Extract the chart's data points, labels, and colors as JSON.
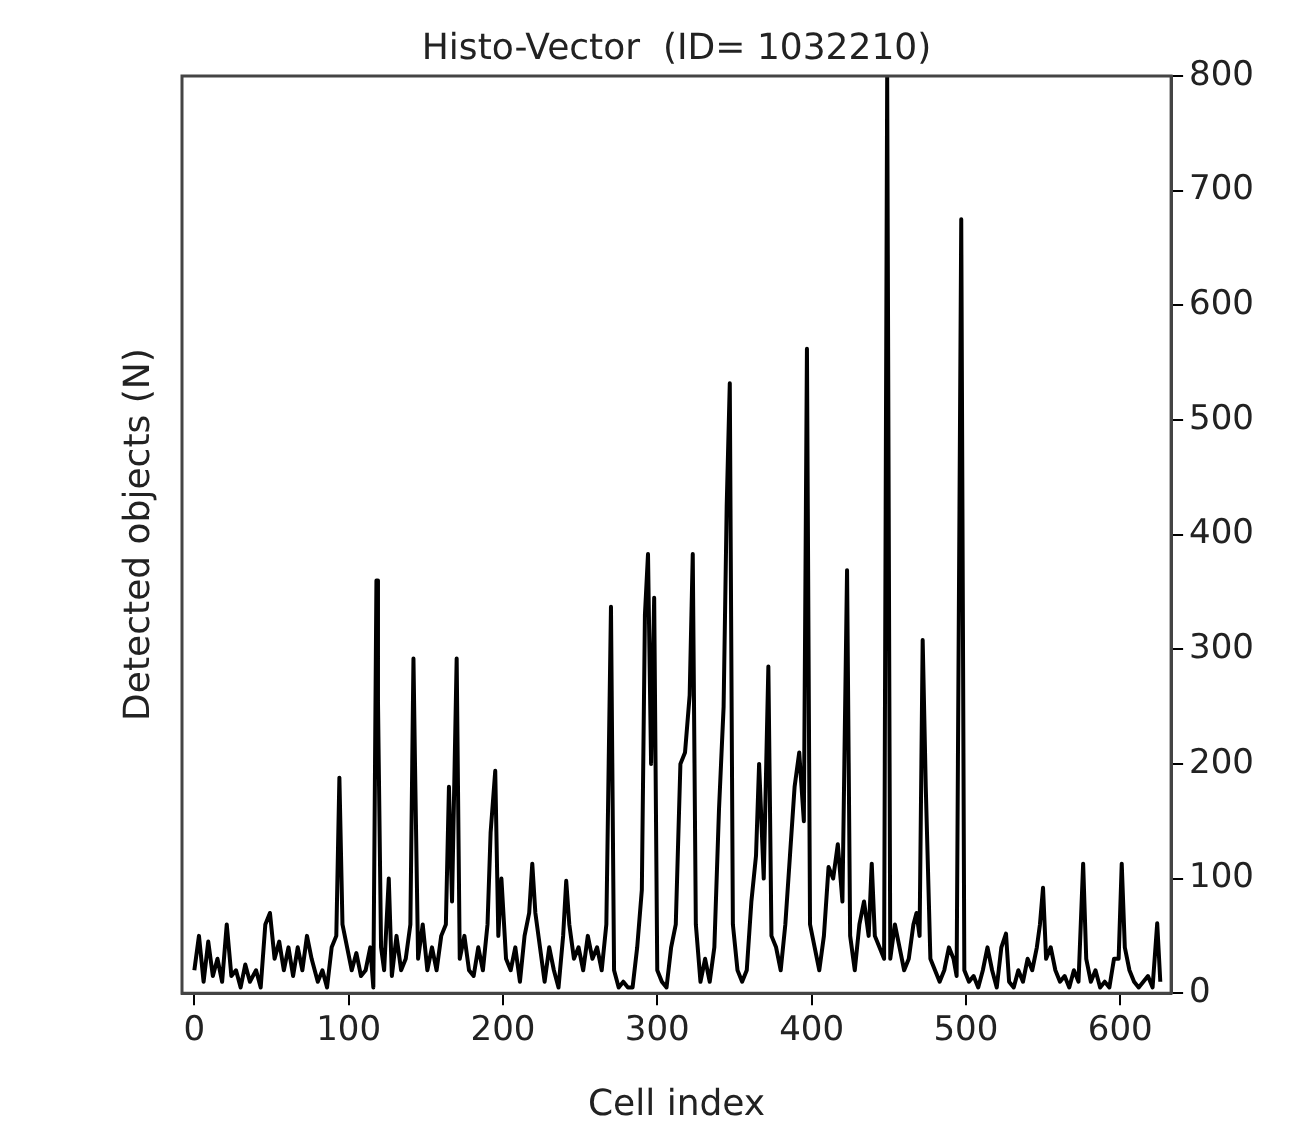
{
  "chart_data": {
    "type": "line",
    "title": "Histo-Vector  (ID= 1032210)",
    "xlabel": "Cell index",
    "ylabel": "Detected objects (N)",
    "xlim": [
      -8,
      633
    ],
    "xticks": [
      0,
      100,
      200,
      300,
      400,
      500,
      600
    ],
    "ylim": [
      0,
      800
    ],
    "yticks": [
      0,
      100,
      200,
      300,
      400,
      500,
      600,
      700,
      800
    ],
    "grid": false,
    "marker": "none",
    "x": [
      0,
      3,
      6,
      9,
      12,
      15,
      18,
      21,
      24,
      27,
      30,
      33,
      36,
      40,
      43,
      46,
      49,
      52,
      55,
      58,
      61,
      64,
      67,
      70,
      73,
      76,
      80,
      83,
      86,
      89,
      92,
      94,
      96,
      99,
      102,
      105,
      108,
      111,
      114,
      116,
      118,
      119,
      121,
      123,
      126,
      128,
      131,
      134,
      137,
      140,
      142,
      143,
      145,
      148,
      151,
      154,
      157,
      160,
      163,
      165,
      167,
      170,
      172,
      175,
      178,
      181,
      184,
      187,
      190,
      192,
      195,
      197,
      199,
      202,
      205,
      208,
      211,
      214,
      217,
      219,
      221,
      224,
      227,
      230,
      233,
      236,
      239,
      241,
      243,
      246,
      249,
      252,
      255,
      258,
      261,
      264,
      267,
      270,
      272,
      275,
      278,
      281,
      284,
      287,
      290,
      292,
      294,
      296,
      298,
      300,
      303,
      306,
      309,
      312,
      315,
      318,
      321,
      323,
      325,
      328,
      331,
      334,
      337,
      340,
      343,
      345,
      347,
      349,
      352,
      355,
      358,
      361,
      364,
      366,
      369,
      372,
      374,
      377,
      380,
      383,
      386,
      389,
      392,
      395,
      397,
      399,
      402,
      405,
      408,
      411,
      414,
      417,
      420,
      423,
      425,
      428,
      431,
      434,
      437,
      439,
      441,
      444,
      447,
      449,
      451,
      454,
      457,
      460,
      463,
      466,
      468,
      470,
      472,
      474,
      477,
      480,
      483,
      486,
      489,
      492,
      494,
      497,
      499,
      502,
      505,
      508,
      511,
      514,
      517,
      520,
      523,
      526,
      528,
      531,
      534,
      537,
      540,
      543,
      546,
      548,
      550,
      552,
      555,
      558,
      561,
      564,
      567,
      570,
      573,
      576,
      578,
      581,
      584,
      587,
      590,
      593,
      596,
      599,
      601,
      603,
      606,
      609,
      612,
      615,
      618,
      621,
      624,
      626
    ],
    "series": [
      {
        "color": "#000000",
        "values": [
          20,
          50,
          10,
          45,
          15,
          30,
          10,
          60,
          15,
          20,
          5,
          25,
          10,
          20,
          5,
          60,
          70,
          30,
          45,
          20,
          40,
          15,
          40,
          20,
          50,
          30,
          10,
          20,
          5,
          40,
          50,
          188,
          60,
          40,
          20,
          35,
          15,
          20,
          40,
          5,
          360,
          255,
          40,
          20,
          100,
          15,
          50,
          20,
          30,
          60,
          292,
          200,
          30,
          60,
          20,
          40,
          20,
          50,
          60,
          180,
          80,
          292,
          30,
          50,
          20,
          15,
          40,
          20,
          60,
          140,
          194,
          50,
          100,
          30,
          20,
          40,
          10,
          50,
          70,
          113,
          70,
          40,
          10,
          40,
          20,
          5,
          50,
          98,
          60,
          30,
          40,
          20,
          50,
          30,
          40,
          20,
          60,
          337,
          20,
          5,
          10,
          5,
          5,
          40,
          90,
          330,
          383,
          200,
          345,
          20,
          10,
          5,
          40,
          60,
          200,
          210,
          260,
          383,
          60,
          10,
          30,
          10,
          40,
          160,
          250,
          425,
          532,
          60,
          20,
          10,
          20,
          80,
          120,
          200,
          100,
          285,
          50,
          40,
          20,
          60,
          120,
          180,
          210,
          150,
          562,
          60,
          40,
          20,
          50,
          110,
          100,
          130,
          80,
          369,
          50,
          20,
          60,
          80,
          50,
          113,
          50,
          40,
          30,
          800,
          30,
          60,
          40,
          20,
          30,
          60,
          70,
          50,
          308,
          180,
          30,
          20,
          10,
          20,
          40,
          30,
          15,
          675,
          20,
          10,
          15,
          5,
          20,
          40,
          20,
          5,
          40,
          52,
          10,
          5,
          20,
          10,
          30,
          20,
          40,
          60,
          92,
          30,
          40,
          20,
          10,
          15,
          5,
          20,
          10,
          113,
          30,
          10,
          20,
          5,
          10,
          5,
          30,
          30,
          113,
          40,
          20,
          10,
          5,
          10,
          15,
          5,
          61,
          10
        ]
      }
    ]
  }
}
